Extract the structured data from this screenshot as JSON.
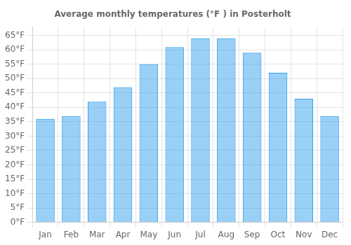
{
  "chart_data": {
    "type": "bar",
    "title": "Average monthly temperatures (°F ) in Posterholt",
    "categories": [
      "Jan",
      "Feb",
      "Mar",
      "Apr",
      "May",
      "Jun",
      "Jul",
      "Aug",
      "Sep",
      "Oct",
      "Nov",
      "Dec"
    ],
    "values": [
      36,
      37,
      42,
      47,
      55,
      61,
      64,
      64,
      59,
      52,
      43,
      37
    ],
    "ylim": [
      0,
      68
    ],
    "yticks": [
      {
        "value": 0,
        "label": "0°F"
      },
      {
        "value": 5,
        "label": "5°F"
      },
      {
        "value": 10,
        "label": "10°F"
      },
      {
        "value": 15,
        "label": "15°F"
      },
      {
        "value": 20,
        "label": "20°F"
      },
      {
        "value": 25,
        "label": "25°F"
      },
      {
        "value": 30,
        "label": "30°F"
      },
      {
        "value": 35,
        "label": "35°F"
      },
      {
        "value": 40,
        "label": "40°F"
      },
      {
        "value": 45,
        "label": "45°F"
      },
      {
        "value": 50,
        "label": "50°F"
      },
      {
        "value": 55,
        "label": "55°F"
      },
      {
        "value": 60,
        "label": "60°F"
      },
      {
        "value": 65,
        "label": "65°F"
      }
    ],
    "grid": true
  }
}
